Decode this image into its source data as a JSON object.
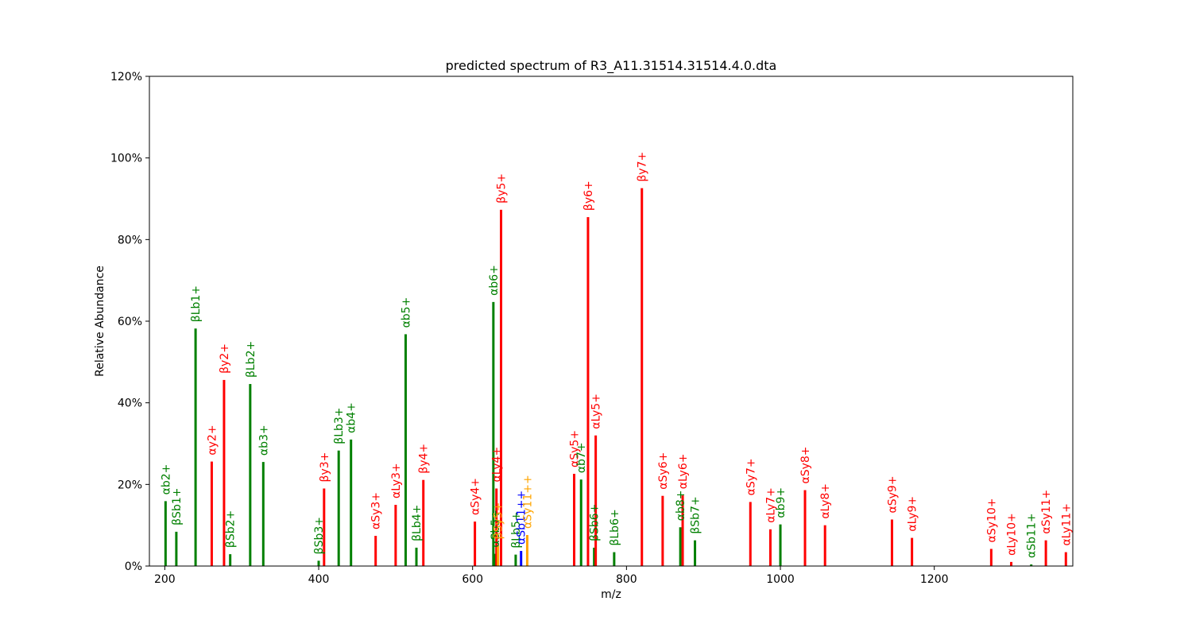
{
  "chart_data": {
    "type": "bar",
    "title": "predicted spectrum of R3_A11.31514.31514.4.0.dta",
    "xlabel": "m/z",
    "ylabel": "Relative Abundance",
    "xlim": [
      180,
      1380
    ],
    "ylim": [
      0,
      120
    ],
    "x_ticks": [
      200,
      400,
      600,
      800,
      1000,
      1200
    ],
    "y_ticks": [
      0,
      20,
      40,
      60,
      80,
      100,
      120
    ],
    "y_tick_format": "percent",
    "grid": false,
    "colors": {
      "red": "#ff0000",
      "green": "#008000",
      "blue": "#0000ff",
      "orange": "#ffa500"
    },
    "peaks": [
      {
        "label": "αb2+",
        "x": 201,
        "y": 15.9,
        "color": "green"
      },
      {
        "label": "βSb1+",
        "x": 215,
        "y": 8.4,
        "color": "green"
      },
      {
        "label": "βLb1+",
        "x": 240,
        "y": 58.2,
        "color": "green"
      },
      {
        "label": "αy2+",
        "x": 261,
        "y": 25.6,
        "color": "red"
      },
      {
        "label": "βy2+",
        "x": 277,
        "y": 45.6,
        "color": "red"
      },
      {
        "label": "βSb2+",
        "x": 285,
        "y": 2.9,
        "color": "green"
      },
      {
        "label": "βLb2+",
        "x": 311,
        "y": 44.6,
        "color": "green"
      },
      {
        "label": "αb3+",
        "x": 328,
        "y": 25.5,
        "color": "green"
      },
      {
        "label": "βSb3+",
        "x": 400,
        "y": 1.3,
        "color": "green"
      },
      {
        "label": "βy3+",
        "x": 407,
        "y": 19.0,
        "color": "red"
      },
      {
        "label": "βLb3+",
        "x": 426,
        "y": 28.3,
        "color": "green"
      },
      {
        "label": "αb4+",
        "x": 442,
        "y": 31.0,
        "color": "green"
      },
      {
        "label": "αSy3+",
        "x": 474,
        "y": 7.4,
        "color": "red"
      },
      {
        "label": "αLy3+",
        "x": 500,
        "y": 15.0,
        "color": "red"
      },
      {
        "label": "αb5+",
        "x": 513,
        "y": 56.8,
        "color": "green"
      },
      {
        "label": "βLb4+",
        "x": 527,
        "y": 4.5,
        "color": "green"
      },
      {
        "label": "βy4+",
        "x": 536,
        "y": 21.1,
        "color": "red"
      },
      {
        "label": "αSy4+",
        "x": 603,
        "y": 10.9,
        "color": "red"
      },
      {
        "label": "αb6+",
        "x": 627,
        "y": 64.7,
        "color": "green"
      },
      {
        "label": "αSb5+",
        "x": 629,
        "y": 3.0,
        "color": "green"
      },
      {
        "label": "αLy4+",
        "x": 631,
        "y": 19.0,
        "color": "red"
      },
      {
        "label": "βSy5+",
        "x": 633,
        "y": 5.0,
        "color": "orange"
      },
      {
        "label": "βy5+",
        "x": 637,
        "y": 87.3,
        "color": "red"
      },
      {
        "label": "βLb5+",
        "x": 656,
        "y": 2.8,
        "color": "green"
      },
      {
        "label": "αSb11++",
        "x": 663,
        "y": 3.7,
        "color": "blue"
      },
      {
        "label": "αSy11++",
        "x": 671,
        "y": 7.6,
        "color": "orange"
      },
      {
        "label": "αSy5+",
        "x": 732,
        "y": 22.6,
        "color": "red"
      },
      {
        "label": "αb7+",
        "x": 741,
        "y": 21.2,
        "color": "green"
      },
      {
        "label": "βy6+",
        "x": 750,
        "y": 85.5,
        "color": "red"
      },
      {
        "label": "βSb6+",
        "x": 758,
        "y": 4.5,
        "color": "green"
      },
      {
        "label": "αLy5+",
        "x": 760,
        "y": 32.0,
        "color": "red"
      },
      {
        "label": "βLb6+",
        "x": 784,
        "y": 3.4,
        "color": "green"
      },
      {
        "label": "βy7+",
        "x": 820,
        "y": 92.6,
        "color": "red"
      },
      {
        "label": "αSy6+",
        "x": 847,
        "y": 17.2,
        "color": "red"
      },
      {
        "label": "αb8+",
        "x": 870,
        "y": 9.5,
        "color": "green"
      },
      {
        "label": "αLy6+",
        "x": 873,
        "y": 17.3,
        "color": "red"
      },
      {
        "label": "βSb7+",
        "x": 889,
        "y": 6.3,
        "color": "green"
      },
      {
        "label": "αSy7+",
        "x": 961,
        "y": 15.7,
        "color": "red"
      },
      {
        "label": "αLy7+",
        "x": 987,
        "y": 9.0,
        "color": "red"
      },
      {
        "label": "αb9+",
        "x": 1000,
        "y": 10.2,
        "color": "green"
      },
      {
        "label": "αSy8+",
        "x": 1032,
        "y": 18.6,
        "color": "red"
      },
      {
        "label": "αLy8+",
        "x": 1058,
        "y": 10.0,
        "color": "red"
      },
      {
        "label": "αSy9+",
        "x": 1145,
        "y": 11.4,
        "color": "red"
      },
      {
        "label": "αLy9+",
        "x": 1171,
        "y": 6.9,
        "color": "red"
      },
      {
        "label": "αSy10+",
        "x": 1274,
        "y": 4.2,
        "color": "red"
      },
      {
        "label": "αLy10+",
        "x": 1300,
        "y": 1.0,
        "color": "red"
      },
      {
        "label": "αSb11+",
        "x": 1326,
        "y": 0.4,
        "color": "green"
      },
      {
        "label": "αSy11+",
        "x": 1345,
        "y": 6.3,
        "color": "red"
      },
      {
        "label": "αLy11+",
        "x": 1371,
        "y": 3.4,
        "color": "red"
      }
    ]
  }
}
